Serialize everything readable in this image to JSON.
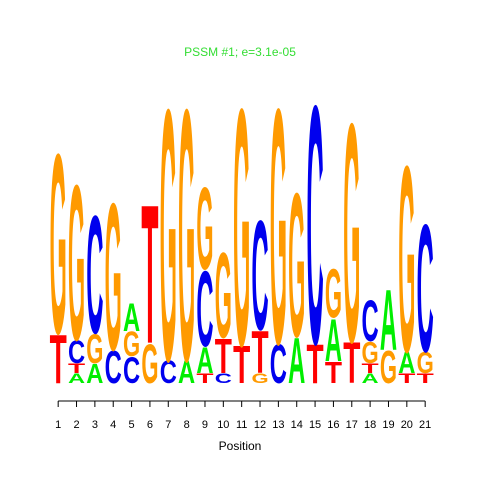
{
  "chart_data": {
    "type": "sequence-logo",
    "title": "PSSM #1; e=3.1e-05",
    "xlabel": "Position",
    "ylabel": "",
    "x_ticks": [
      "1",
      "2",
      "3",
      "4",
      "5",
      "6",
      "7",
      "8",
      "9",
      "10",
      "11",
      "12",
      "13",
      "14",
      "15",
      "16",
      "17",
      "18",
      "19",
      "20",
      "21"
    ],
    "ylim": [
      0,
      2
    ],
    "colors": {
      "A": "#00ee00",
      "C": "#0000ee",
      "G": "#ff9a00",
      "T": "#ff0000",
      "title": "#33dd33"
    },
    "positions": [
      {
        "pos": 1,
        "letters": [
          [
            "T",
            0.3
          ],
          [
            "G",
            1.1
          ]
        ]
      },
      {
        "pos": 2,
        "letters": [
          [
            "A",
            0.06
          ],
          [
            "T",
            0.06
          ],
          [
            "C",
            0.14
          ],
          [
            "G",
            0.95
          ]
        ]
      },
      {
        "pos": 3,
        "letters": [
          [
            "A",
            0.12
          ],
          [
            "G",
            0.18
          ],
          [
            "C",
            0.72
          ]
        ]
      },
      {
        "pos": 4,
        "letters": [
          [
            "C",
            0.2
          ],
          [
            "G",
            0.9
          ]
        ]
      },
      {
        "pos": 5,
        "letters": [
          [
            "C",
            0.16
          ],
          [
            "G",
            0.15
          ],
          [
            "A",
            0.17
          ]
        ]
      },
      {
        "pos": 6,
        "letters": [
          [
            "G",
            0.24
          ],
          [
            "T",
            0.85
          ]
        ]
      },
      {
        "pos": 7,
        "letters": [
          [
            "C",
            0.14
          ],
          [
            "G",
            1.54
          ]
        ]
      },
      {
        "pos": 8,
        "letters": [
          [
            "A",
            0.14
          ],
          [
            "G",
            1.54
          ]
        ]
      },
      {
        "pos": 9,
        "letters": [
          [
            "T",
            0.06
          ],
          [
            "A",
            0.16
          ],
          [
            "C",
            0.46
          ],
          [
            "G",
            0.5
          ]
        ]
      },
      {
        "pos": 10,
        "letters": [
          [
            "C",
            0.06
          ],
          [
            "T",
            0.21
          ],
          [
            "G",
            0.52
          ]
        ]
      },
      {
        "pos": 11,
        "letters": [
          [
            "T",
            0.23
          ],
          [
            "G",
            1.45
          ]
        ]
      },
      {
        "pos": 12,
        "letters": [
          [
            "G",
            0.06
          ],
          [
            "T",
            0.26
          ],
          [
            "C",
            0.67
          ]
        ]
      },
      {
        "pos": 13,
        "letters": [
          [
            "C",
            0.24
          ],
          [
            "G",
            1.44
          ]
        ]
      },
      {
        "pos": 14,
        "letters": [
          [
            "A",
            0.28
          ],
          [
            "G",
            0.88
          ]
        ]
      },
      {
        "pos": 15,
        "letters": [
          [
            "T",
            0.24
          ],
          [
            "C",
            1.46
          ]
        ]
      },
      {
        "pos": 16,
        "letters": [
          [
            "T",
            0.13
          ],
          [
            "A",
            0.26
          ],
          [
            "G",
            0.3
          ]
        ]
      },
      {
        "pos": 17,
        "letters": [
          [
            "T",
            0.25
          ],
          [
            "G",
            1.34
          ]
        ]
      },
      {
        "pos": 18,
        "letters": [
          [
            "A",
            0.06
          ],
          [
            "T",
            0.06
          ],
          [
            "G",
            0.13
          ],
          [
            "C",
            0.25
          ]
        ]
      },
      {
        "pos": 19,
        "letters": [
          [
            "G",
            0.2
          ],
          [
            "A",
            0.37
          ]
        ]
      },
      {
        "pos": 20,
        "letters": [
          [
            "T",
            0.06
          ],
          [
            "A",
            0.13
          ],
          [
            "G",
            1.14
          ]
        ]
      },
      {
        "pos": 21,
        "letters": [
          [
            "T",
            0.06
          ],
          [
            "G",
            0.13
          ],
          [
            "C",
            0.78
          ]
        ]
      }
    ]
  }
}
